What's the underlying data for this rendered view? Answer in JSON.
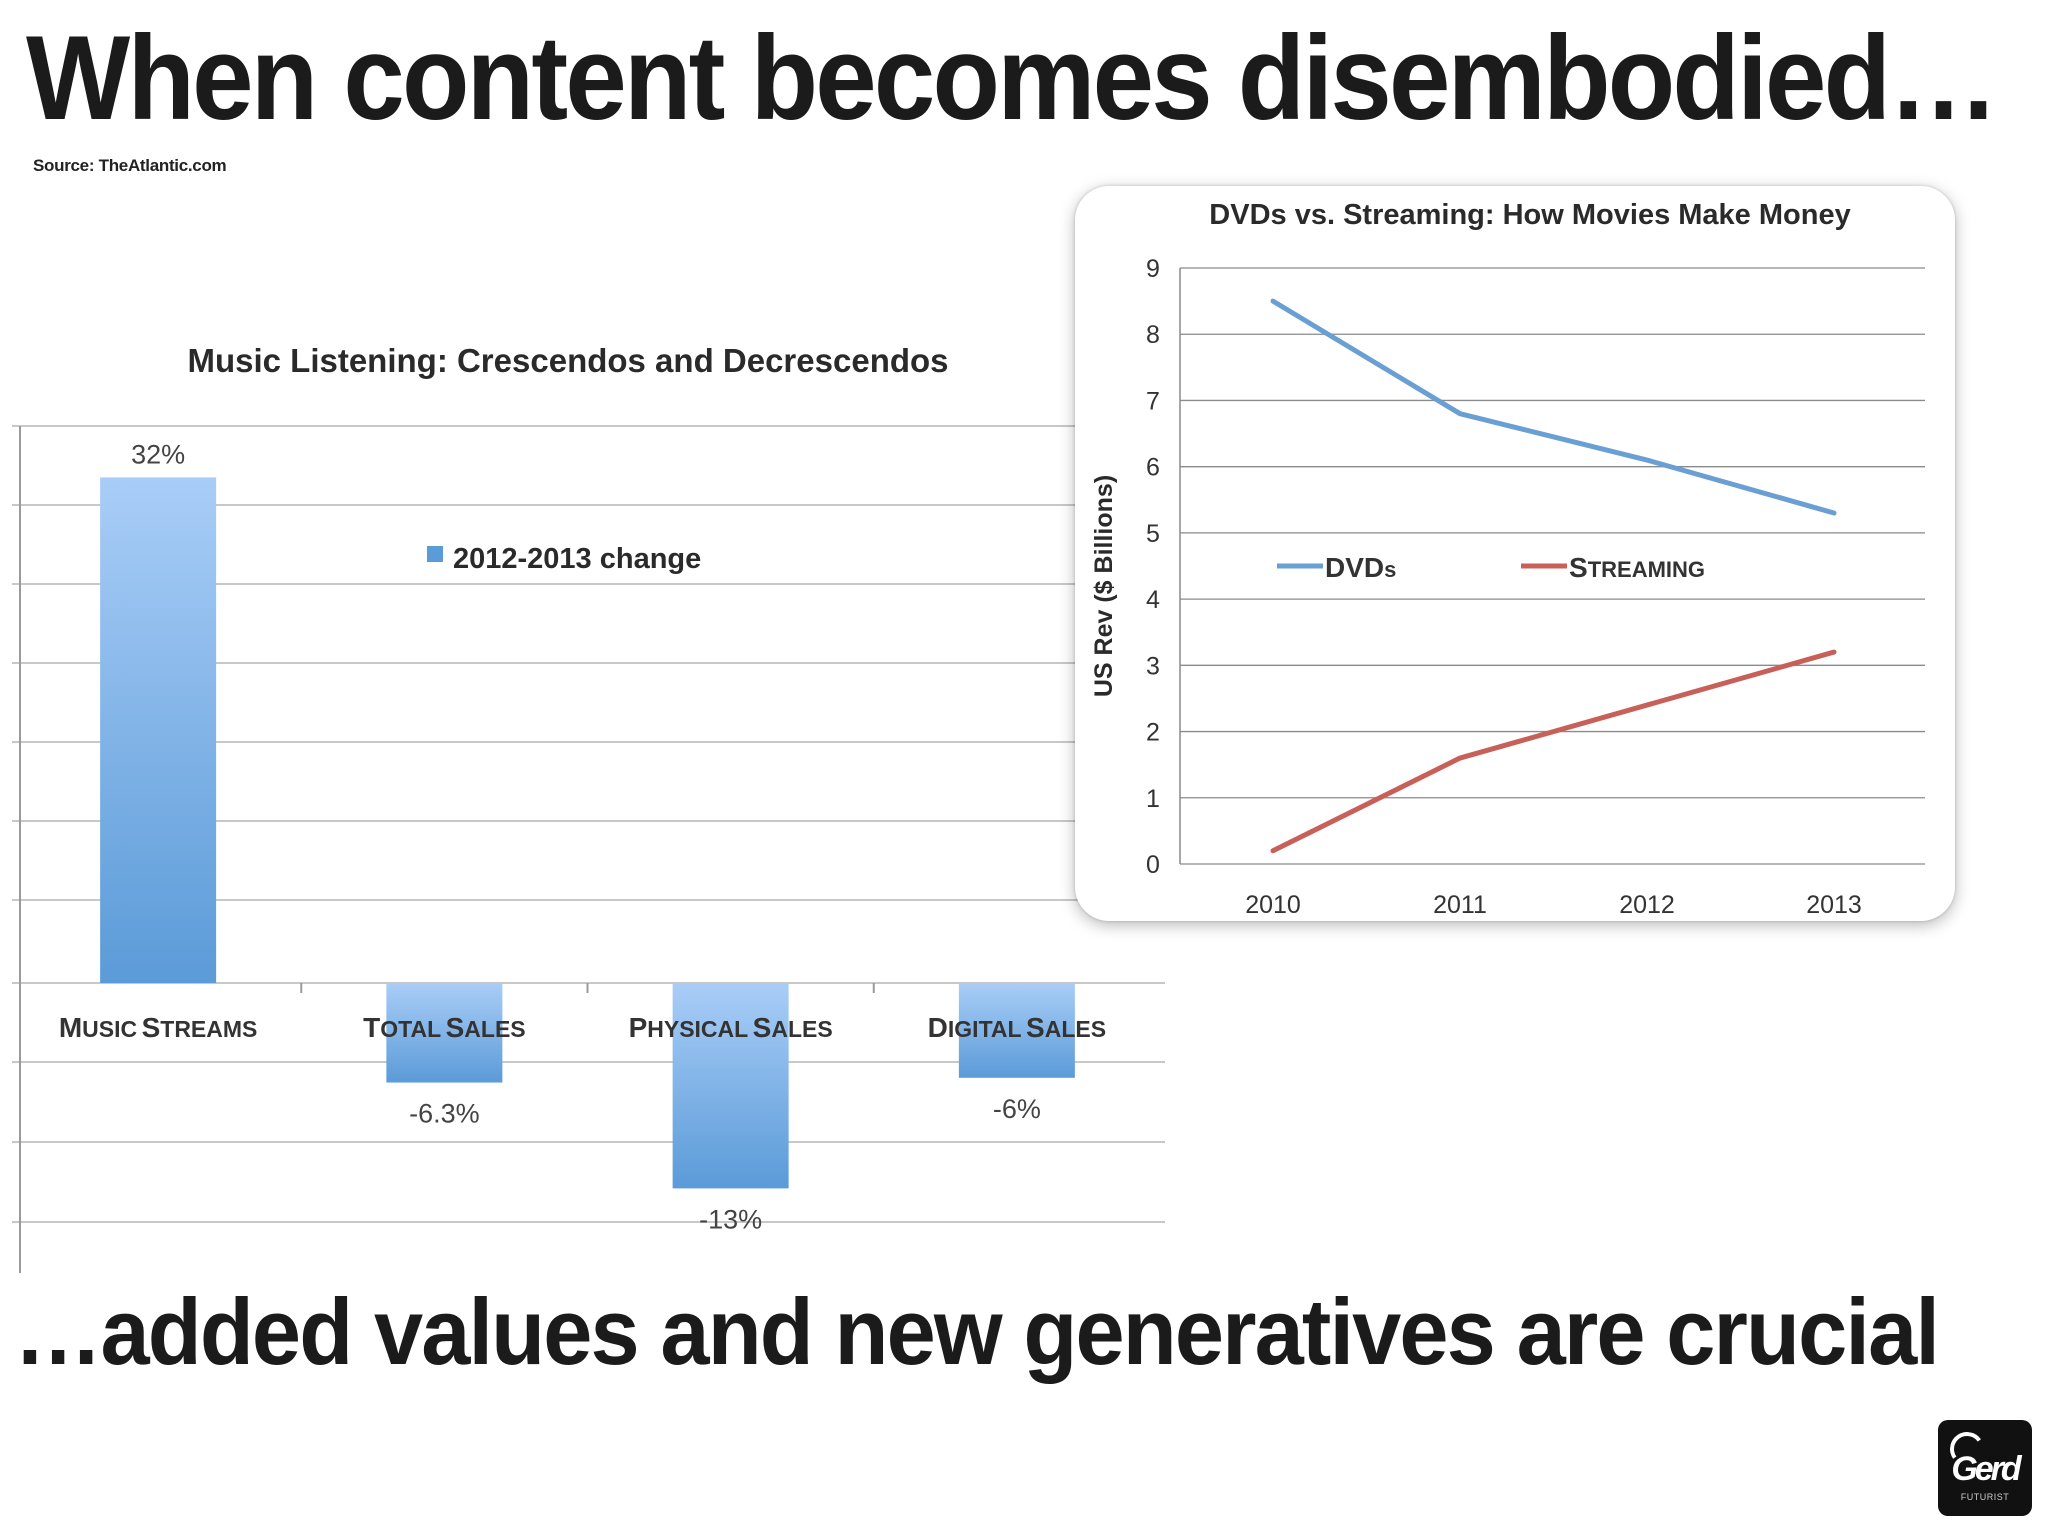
{
  "headline": "When content becomes disembodied…",
  "source": "Source: TheAtlantic.com",
  "footer": "…added values and new generatives are crucial",
  "logo": {
    "text": "Gerd",
    "tagline": "FUTURIST"
  },
  "colors": {
    "bar_light": "#a9cdf7",
    "bar_dark": "#5b9bd8",
    "dvd_line": "#6a9fd4",
    "streaming_line": "#c8605a",
    "grid": "#c8c8c8"
  },
  "chart_data": [
    {
      "type": "bar",
      "title": "Music Listening: Crescendos and Decrescendos",
      "categories": [
        "Music streams",
        "Total sales",
        "Physical sales",
        "Digital sales"
      ],
      "category_labels": [
        "Music streams",
        "Total sales",
        "Physical sales",
        "Digital sales"
      ],
      "series": [
        {
          "name": "2012-2013 change",
          "values": [
            32,
            -6.3,
            -13,
            -6
          ]
        }
      ],
      "data_labels": [
        "32%",
        "-6.3%",
        "-13%",
        "-6%"
      ],
      "ylim": [
        -18,
        35
      ],
      "grid": true,
      "legend": "top-center"
    },
    {
      "type": "line",
      "title": "DVDs vs. Streaming: How Movies Make Money",
      "ylabel": "US Rev ($ Billions)",
      "xlabel": "",
      "x": [
        "2010",
        "2011",
        "2012",
        "2013"
      ],
      "yticks": [
        "0",
        "1",
        "2",
        "3",
        "4",
        "5",
        "6",
        "7",
        "8",
        "9"
      ],
      "ylim": [
        0,
        9
      ],
      "series": [
        {
          "name": "DVDs",
          "values": [
            8.5,
            6.8,
            6.1,
            5.3
          ]
        },
        {
          "name": "Streaming",
          "values": [
            0.2,
            1.6,
            2.4,
            3.2
          ]
        }
      ],
      "grid": true,
      "legend": "center"
    }
  ]
}
